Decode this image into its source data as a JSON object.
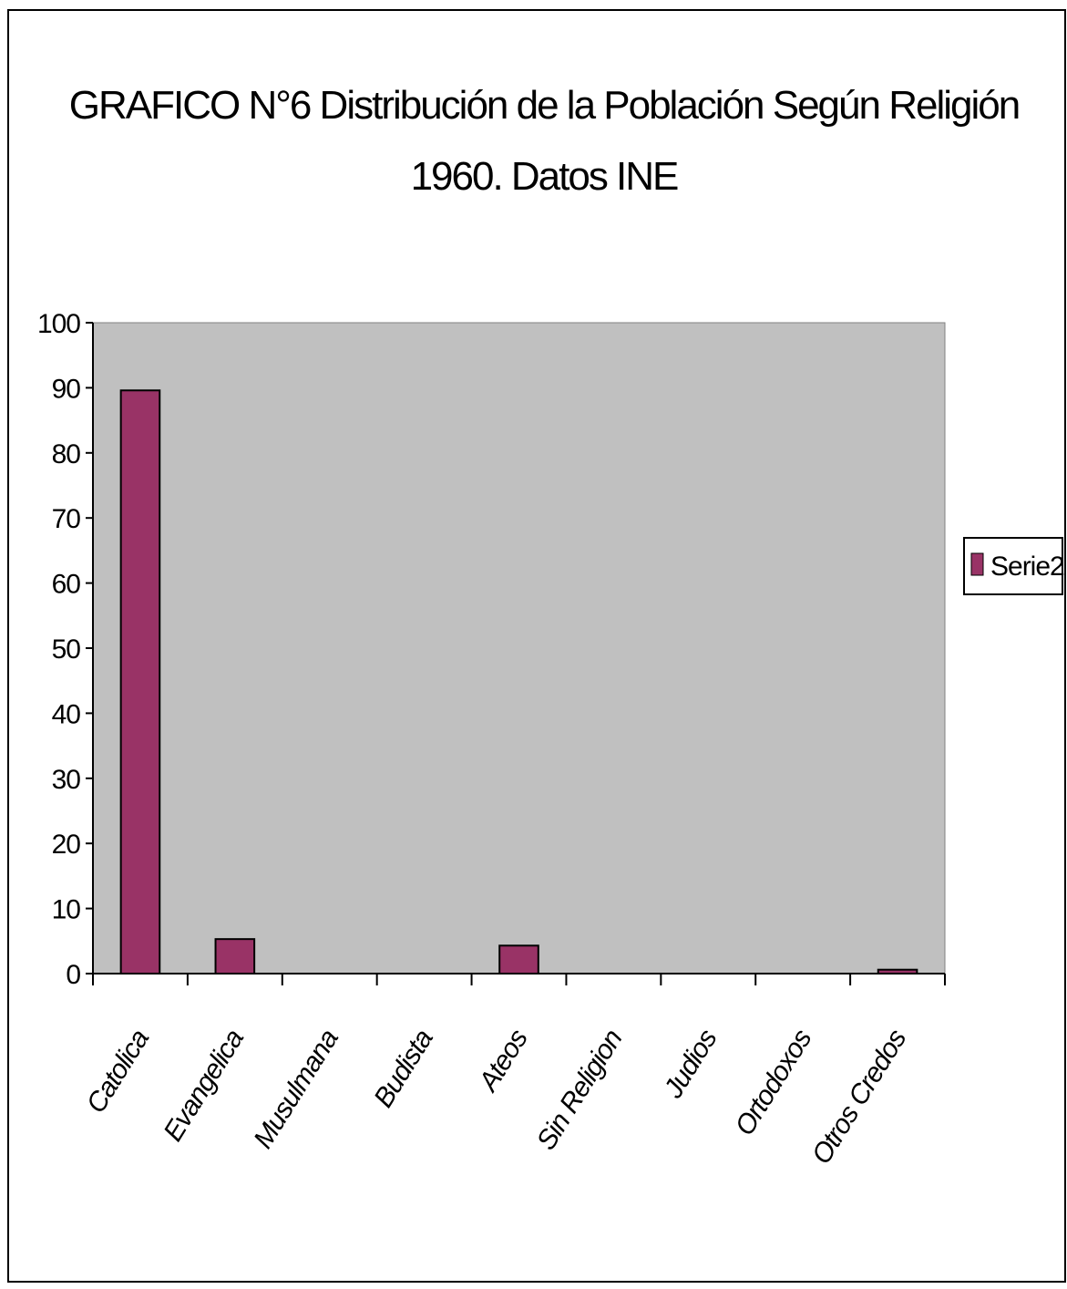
{
  "chart_data": {
    "type": "bar",
    "title": "GRAFICO N°6  Distribución de la Población Según Religión",
    "subtitle": "1960. Datos INE",
    "categories": [
      "Catolica",
      "Evangelica",
      "Musulmana",
      "Budista",
      "Ateos",
      "Sin Religion",
      "Judios",
      "Ortodoxos",
      "Otros Credos"
    ],
    "series": [
      {
        "name": "Serie2",
        "values": [
          89.6,
          5.3,
          0,
          0,
          4.3,
          0,
          0,
          0,
          0.6
        ]
      }
    ],
    "xlabel": "",
    "ylabel": "",
    "ylim": [
      0,
      100
    ],
    "yticks": [
      "0",
      "10",
      "20",
      "30",
      "40",
      "50",
      "60",
      "70",
      "80",
      "90",
      "100"
    ],
    "grid": false,
    "legend_position": "right",
    "colors": {
      "plot_background": "#c0c0c0",
      "bar_fill": "#993366",
      "bar_stroke": "#000000"
    }
  }
}
